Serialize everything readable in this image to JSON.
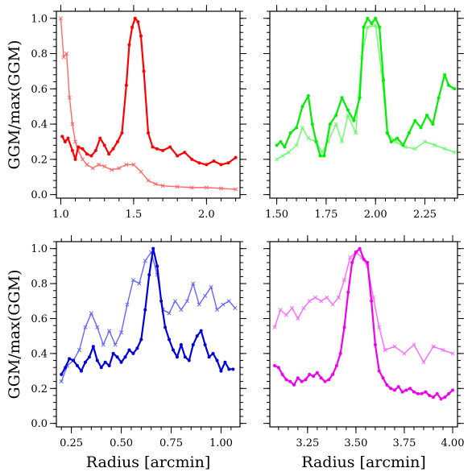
{
  "chart_data": [
    {
      "type": "line",
      "xlim": [
        0.97,
        2.23
      ],
      "ylim": [
        -0.02,
        1.04
      ],
      "xticks": [
        {
          "v": 1.0,
          "label": "1.0"
        },
        {
          "v": 1.5,
          "label": "1.5"
        },
        {
          "v": 2.0,
          "label": "2.0"
        }
      ],
      "yticks": [
        {
          "v": 0.0,
          "label": "0.0"
        },
        {
          "v": 0.2,
          "label": "0.2"
        },
        {
          "v": 0.4,
          "label": "0.4"
        },
        {
          "v": 0.6,
          "label": "0.6"
        },
        {
          "v": 0.8,
          "label": "0.8"
        },
        {
          "v": 1.0,
          "label": "1.0"
        }
      ],
      "xlabel": "",
      "ylabel": "GGM/max(GGM)",
      "grid": false,
      "series": [
        {
          "color": "#ff6666",
          "marker": "x",
          "light": true,
          "x": [
            1.0,
            1.02,
            1.04,
            1.06,
            1.08,
            1.1,
            1.12,
            1.15,
            1.18,
            1.22,
            1.26,
            1.3,
            1.35,
            1.4,
            1.45,
            1.5,
            1.55,
            1.6,
            1.65,
            1.7,
            1.8,
            1.9,
            2.0,
            2.1,
            2.2
          ],
          "y": [
            1.0,
            0.78,
            0.8,
            0.55,
            0.4,
            0.3,
            0.25,
            0.2,
            0.17,
            0.15,
            0.17,
            0.16,
            0.14,
            0.15,
            0.17,
            0.17,
            0.13,
            0.08,
            0.06,
            0.05,
            0.045,
            0.04,
            0.04,
            0.035,
            0.03
          ]
        },
        {
          "color": "#ff0000",
          "marker": "o",
          "x": [
            1.01,
            1.03,
            1.05,
            1.08,
            1.1,
            1.12,
            1.15,
            1.18,
            1.21,
            1.24,
            1.27,
            1.3,
            1.33,
            1.36,
            1.39,
            1.42,
            1.45,
            1.47,
            1.49,
            1.51,
            1.53,
            1.55,
            1.57,
            1.6,
            1.63,
            1.66,
            1.7,
            1.75,
            1.8,
            1.85,
            1.9,
            1.95,
            2.0,
            2.05,
            2.1,
            2.15,
            2.2
          ],
          "y": [
            0.33,
            0.3,
            0.32,
            0.25,
            0.2,
            0.27,
            0.26,
            0.23,
            0.22,
            0.25,
            0.32,
            0.28,
            0.23,
            0.26,
            0.3,
            0.35,
            0.62,
            0.85,
            0.95,
            1.0,
            0.98,
            0.9,
            0.7,
            0.35,
            0.27,
            0.26,
            0.25,
            0.27,
            0.22,
            0.24,
            0.2,
            0.18,
            0.17,
            0.19,
            0.17,
            0.18,
            0.21
          ]
        }
      ]
    },
    {
      "type": "line",
      "xlim": [
        1.465,
        2.415
      ],
      "ylim": [
        -0.02,
        1.04
      ],
      "xticks": [
        {
          "v": 1.5,
          "label": "1.50"
        },
        {
          "v": 1.75,
          "label": "1.75"
        },
        {
          "v": 2.0,
          "label": "2.00"
        },
        {
          "v": 2.25,
          "label": "2.25"
        }
      ],
      "yticks": [
        {
          "v": 0.0,
          "label": ""
        },
        {
          "v": 0.2,
          "label": ""
        },
        {
          "v": 0.4,
          "label": ""
        },
        {
          "v": 0.6,
          "label": ""
        },
        {
          "v": 0.8,
          "label": ""
        },
        {
          "v": 1.0,
          "label": ""
        }
      ],
      "xlabel": "",
      "ylabel": "",
      "grid": false,
      "series": [
        {
          "color": "#66ff66",
          "marker": "x",
          "light": true,
          "x": [
            1.5,
            1.53,
            1.56,
            1.6,
            1.63,
            1.66,
            1.7,
            1.73,
            1.76,
            1.8,
            1.83,
            1.86,
            1.9,
            1.93,
            1.96,
            2.0,
            2.03,
            2.06,
            2.1,
            2.15,
            2.2,
            2.25,
            2.3,
            2.35,
            2.4
          ],
          "y": [
            0.2,
            0.22,
            0.24,
            0.28,
            0.38,
            0.32,
            0.3,
            0.24,
            0.3,
            0.4,
            0.3,
            0.45,
            0.35,
            0.78,
            0.95,
            0.96,
            0.7,
            0.35,
            0.3,
            0.27,
            0.26,
            0.3,
            0.28,
            0.26,
            0.24
          ]
        },
        {
          "color": "#00ee00",
          "marker": "o",
          "x": [
            1.5,
            1.52,
            1.54,
            1.57,
            1.6,
            1.63,
            1.66,
            1.68,
            1.7,
            1.72,
            1.74,
            1.77,
            1.8,
            1.83,
            1.86,
            1.89,
            1.92,
            1.94,
            1.96,
            1.98,
            2.0,
            2.02,
            2.04,
            2.06,
            2.08,
            2.11,
            2.14,
            2.17,
            2.2,
            2.23,
            2.26,
            2.29,
            2.32,
            2.35,
            2.37,
            2.4
          ],
          "y": [
            0.28,
            0.3,
            0.27,
            0.35,
            0.38,
            0.5,
            0.56,
            0.4,
            0.3,
            0.22,
            0.22,
            0.4,
            0.45,
            0.55,
            0.48,
            0.42,
            0.55,
            0.95,
            1.0,
            0.97,
            1.0,
            0.95,
            0.65,
            0.35,
            0.3,
            0.32,
            0.28,
            0.35,
            0.42,
            0.38,
            0.45,
            0.4,
            0.55,
            0.68,
            0.62,
            0.6
          ]
        }
      ]
    },
    {
      "type": "line",
      "xlim": [
        0.175,
        1.095
      ],
      "ylim": [
        -0.02,
        1.04
      ],
      "xticks": [
        {
          "v": 0.25,
          "label": "0.25"
        },
        {
          "v": 0.5,
          "label": "0.50"
        },
        {
          "v": 0.75,
          "label": "0.75"
        },
        {
          "v": 1.0,
          "label": "1.00"
        }
      ],
      "yticks": [
        {
          "v": 0.0,
          "label": "0.0"
        },
        {
          "v": 0.2,
          "label": "0.2"
        },
        {
          "v": 0.4,
          "label": "0.4"
        },
        {
          "v": 0.6,
          "label": "0.6"
        },
        {
          "v": 0.8,
          "label": "0.8"
        },
        {
          "v": 1.0,
          "label": "1.0"
        }
      ],
      "xlabel": "Radius [arcmin]",
      "ylabel": "GGM/max(GGM)",
      "grid": false,
      "series": [
        {
          "color": "#6666ff",
          "marker": "x",
          "light": true,
          "x": [
            0.2,
            0.23,
            0.26,
            0.29,
            0.32,
            0.35,
            0.38,
            0.41,
            0.44,
            0.47,
            0.5,
            0.53,
            0.56,
            0.59,
            0.62,
            0.65,
            0.68,
            0.71,
            0.74,
            0.77,
            0.8,
            0.83,
            0.86,
            0.89,
            0.92,
            0.95,
            0.98,
            1.01,
            1.04,
            1.07
          ],
          "y": [
            0.24,
            0.33,
            0.36,
            0.42,
            0.55,
            0.63,
            0.55,
            0.45,
            0.53,
            0.45,
            0.52,
            0.68,
            0.82,
            0.8,
            0.93,
            0.98,
            0.85,
            0.65,
            0.63,
            0.7,
            0.65,
            0.7,
            0.8,
            0.68,
            0.73,
            0.78,
            0.65,
            0.68,
            0.7,
            0.66
          ]
        },
        {
          "color": "#0000dd",
          "marker": "o",
          "x": [
            0.2,
            0.22,
            0.24,
            0.26,
            0.28,
            0.3,
            0.32,
            0.34,
            0.36,
            0.38,
            0.4,
            0.42,
            0.44,
            0.46,
            0.48,
            0.5,
            0.52,
            0.54,
            0.56,
            0.58,
            0.6,
            0.62,
            0.64,
            0.66,
            0.68,
            0.7,
            0.72,
            0.74,
            0.76,
            0.78,
            0.8,
            0.82,
            0.84,
            0.86,
            0.88,
            0.9,
            0.92,
            0.94,
            0.96,
            0.98,
            1.0,
            1.02,
            1.04,
            1.06
          ],
          "y": [
            0.28,
            0.32,
            0.37,
            0.36,
            0.33,
            0.3,
            0.35,
            0.38,
            0.44,
            0.36,
            0.32,
            0.35,
            0.33,
            0.4,
            0.38,
            0.35,
            0.38,
            0.42,
            0.4,
            0.43,
            0.48,
            0.65,
            0.85,
            1.0,
            0.9,
            0.7,
            0.55,
            0.48,
            0.42,
            0.38,
            0.45,
            0.38,
            0.36,
            0.45,
            0.5,
            0.53,
            0.45,
            0.38,
            0.4,
            0.36,
            0.3,
            0.35,
            0.31,
            0.31
          ]
        }
      ]
    },
    {
      "type": "line",
      "xlim": [
        3.055,
        4.025
      ],
      "ylim": [
        -0.02,
        1.04
      ],
      "xticks": [
        {
          "v": 3.25,
          "label": "3.25"
        },
        {
          "v": 3.5,
          "label": "3.50"
        },
        {
          "v": 3.75,
          "label": "3.75"
        },
        {
          "v": 4.0,
          "label": "4.00"
        }
      ],
      "yticks": [
        {
          "v": 0.0,
          "label": ""
        },
        {
          "v": 0.2,
          "label": ""
        },
        {
          "v": 0.4,
          "label": ""
        },
        {
          "v": 0.6,
          "label": ""
        },
        {
          "v": 0.8,
          "label": ""
        },
        {
          "v": 1.0,
          "label": ""
        }
      ],
      "xlabel": "Radius [arcmin]",
      "ylabel": "",
      "grid": false,
      "series": [
        {
          "color": "#ff66ff",
          "marker": "x",
          "light": true,
          "x": [
            3.08,
            3.11,
            3.14,
            3.17,
            3.2,
            3.23,
            3.26,
            3.29,
            3.32,
            3.35,
            3.38,
            3.41,
            3.44,
            3.47,
            3.5,
            3.53,
            3.56,
            3.59,
            3.62,
            3.65,
            3.7,
            3.75,
            3.8,
            3.85,
            3.9,
            3.95,
            4.0
          ],
          "y": [
            0.55,
            0.65,
            0.62,
            0.66,
            0.6,
            0.66,
            0.7,
            0.72,
            0.7,
            0.72,
            0.68,
            0.72,
            0.82,
            0.95,
            0.98,
            0.95,
            0.9,
            0.72,
            0.55,
            0.42,
            0.44,
            0.4,
            0.45,
            0.35,
            0.44,
            0.42,
            0.4
          ]
        },
        {
          "color": "#ee00ee",
          "marker": "o",
          "x": [
            3.08,
            3.1,
            3.12,
            3.14,
            3.16,
            3.18,
            3.2,
            3.22,
            3.24,
            3.26,
            3.28,
            3.3,
            3.32,
            3.34,
            3.36,
            3.38,
            3.4,
            3.42,
            3.44,
            3.46,
            3.48,
            3.5,
            3.52,
            3.54,
            3.56,
            3.58,
            3.6,
            3.62,
            3.64,
            3.66,
            3.68,
            3.7,
            3.72,
            3.74,
            3.76,
            3.78,
            3.8,
            3.82,
            3.84,
            3.86,
            3.88,
            3.9,
            3.92,
            3.94,
            3.96,
            3.98,
            4.0
          ],
          "y": [
            0.33,
            0.32,
            0.28,
            0.25,
            0.24,
            0.22,
            0.26,
            0.24,
            0.25,
            0.28,
            0.27,
            0.29,
            0.26,
            0.24,
            0.25,
            0.28,
            0.33,
            0.4,
            0.55,
            0.75,
            0.92,
            0.98,
            1.0,
            0.94,
            0.92,
            0.7,
            0.45,
            0.3,
            0.26,
            0.22,
            0.2,
            0.19,
            0.21,
            0.18,
            0.19,
            0.2,
            0.18,
            0.17,
            0.17,
            0.18,
            0.16,
            0.15,
            0.17,
            0.14,
            0.15,
            0.17,
            0.19
          ]
        }
      ]
    }
  ]
}
